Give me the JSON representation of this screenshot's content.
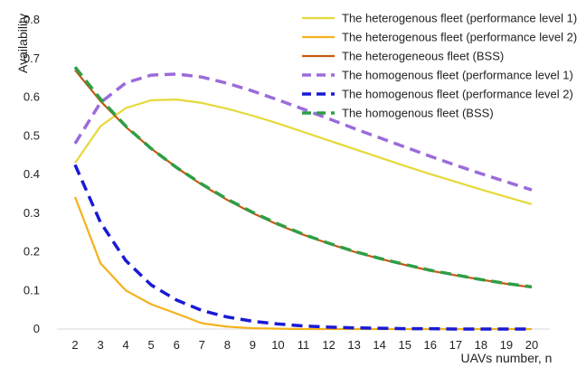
{
  "chart_data": {
    "type": "line",
    "xlabel": "UAVs number, n",
    "ylabel": "Availability",
    "x": [
      2,
      3,
      4,
      5,
      6,
      7,
      8,
      9,
      10,
      11,
      12,
      13,
      14,
      15,
      16,
      17,
      18,
      19,
      20
    ],
    "xlim": [
      2,
      20
    ],
    "ylim": [
      0,
      0.8
    ],
    "yticks": [
      0,
      0.1,
      0.2,
      0.3,
      0.4,
      0.5,
      0.6,
      0.7,
      0.8
    ],
    "ytick_labels": [
      "0",
      "0.1",
      "0.2",
      "0.3",
      "0.4",
      "0.5",
      "0.6",
      "0.7",
      "0.8"
    ],
    "xtick_labels": [
      "2",
      "3",
      "4",
      "5",
      "6",
      "7",
      "8",
      "9",
      "10",
      "11",
      "12",
      "13",
      "14",
      "15",
      "16",
      "17",
      "18",
      "19",
      "20"
    ],
    "grid": false,
    "legend_position": "top-right",
    "series": [
      {
        "name": "The heterogenous fleet (performance level 1)",
        "color": "#e6d93a",
        "dash": "solid",
        "values": [
          0.43,
          0.525,
          0.572,
          0.592,
          0.594,
          0.585,
          0.57,
          0.552,
          0.532,
          0.51,
          0.488,
          0.466,
          0.444,
          0.422,
          0.401,
          0.381,
          0.361,
          0.342,
          0.323
        ]
      },
      {
        "name": "The heterogenous fleet (performance level 2)",
        "color": "#f4b21b",
        "dash": "solid",
        "values": [
          0.342,
          0.17,
          0.1,
          0.064,
          0.04,
          0.015,
          0.006,
          0.002,
          0.001,
          0,
          0,
          0,
          0,
          0,
          0,
          0,
          0,
          0,
          0
        ]
      },
      {
        "name": "The heterogeneous fleet (BSS)",
        "color": "#c55a11",
        "dash": "solid",
        "values": [
          0.67,
          0.59,
          0.523,
          0.467,
          0.418,
          0.373,
          0.334,
          0.3,
          0.27,
          0.244,
          0.221,
          0.2,
          0.182,
          0.166,
          0.151,
          0.139,
          0.128,
          0.117,
          0.108
        ]
      },
      {
        "name": "The homogenous fleet (performance level 1)",
        "color": "#9b6bdb",
        "dash": "dashed",
        "values": [
          0.48,
          0.586,
          0.637,
          0.657,
          0.66,
          0.652,
          0.636,
          0.616,
          0.593,
          0.569,
          0.544,
          0.519,
          0.495,
          0.471,
          0.447,
          0.424,
          0.402,
          0.381,
          0.36
        ]
      },
      {
        "name": "The homogenous fleet (performance level 2)",
        "color": "#1a1ad6",
        "dash": "dashed",
        "values": [
          0.425,
          0.276,
          0.177,
          0.114,
          0.075,
          0.048,
          0.031,
          0.02,
          0.013,
          0.008,
          0.005,
          0.003,
          0.002,
          0.001,
          0.001,
          0,
          0,
          0,
          0
        ]
      },
      {
        "name": "The homogenous fleet (BSS)",
        "color": "#2e9e46",
        "dash": "dashed",
        "values": [
          0.678,
          0.595,
          0.525,
          0.467,
          0.418,
          0.375,
          0.336,
          0.302,
          0.272,
          0.245,
          0.222,
          0.201,
          0.183,
          0.167,
          0.152,
          0.14,
          0.128,
          0.118,
          0.109
        ]
      }
    ]
  }
}
